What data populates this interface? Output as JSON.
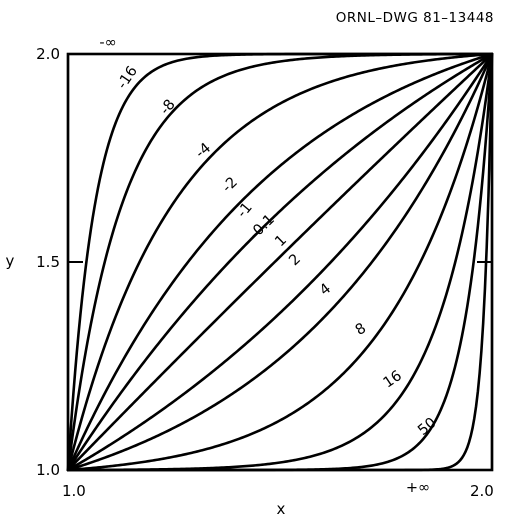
{
  "chart_data": {
    "type": "line",
    "title": "",
    "figure_id": "ORNL–DWG 81–13448",
    "xlabel": "x",
    "ylabel": "y",
    "xlim": [
      1.0,
      2.0
    ],
    "ylim": [
      1.0,
      2.0
    ],
    "xticks": [
      {
        "value": 1.0,
        "label": "1.0"
      },
      {
        "value": 2.0,
        "label": "2.0"
      }
    ],
    "yticks": [
      {
        "value": 1.0,
        "label": "1.0"
      },
      {
        "value": 1.5,
        "label": "1.5"
      },
      {
        "value": 2.0,
        "label": "2.0"
      }
    ],
    "grid": false,
    "legend": "none",
    "series": [
      {
        "name": "-∞"
      },
      {
        "name": "-16",
        "k": -16
      },
      {
        "name": "-8",
        "k": -8
      },
      {
        "name": "-4",
        "k": -4
      },
      {
        "name": "-2",
        "k": -2
      },
      {
        "name": "-1",
        "k": -1
      },
      {
        "name": "-0.1",
        "k": -0.1
      },
      {
        "name": "1",
        "k": 1
      },
      {
        "name": "2",
        "k": 2
      },
      {
        "name": "4",
        "k": 4
      },
      {
        "name": "8",
        "k": 8
      },
      {
        "name": "16",
        "k": 16
      },
      {
        "name": "50",
        "k": 50
      },
      {
        "name": "+∞"
      }
    ]
  }
}
